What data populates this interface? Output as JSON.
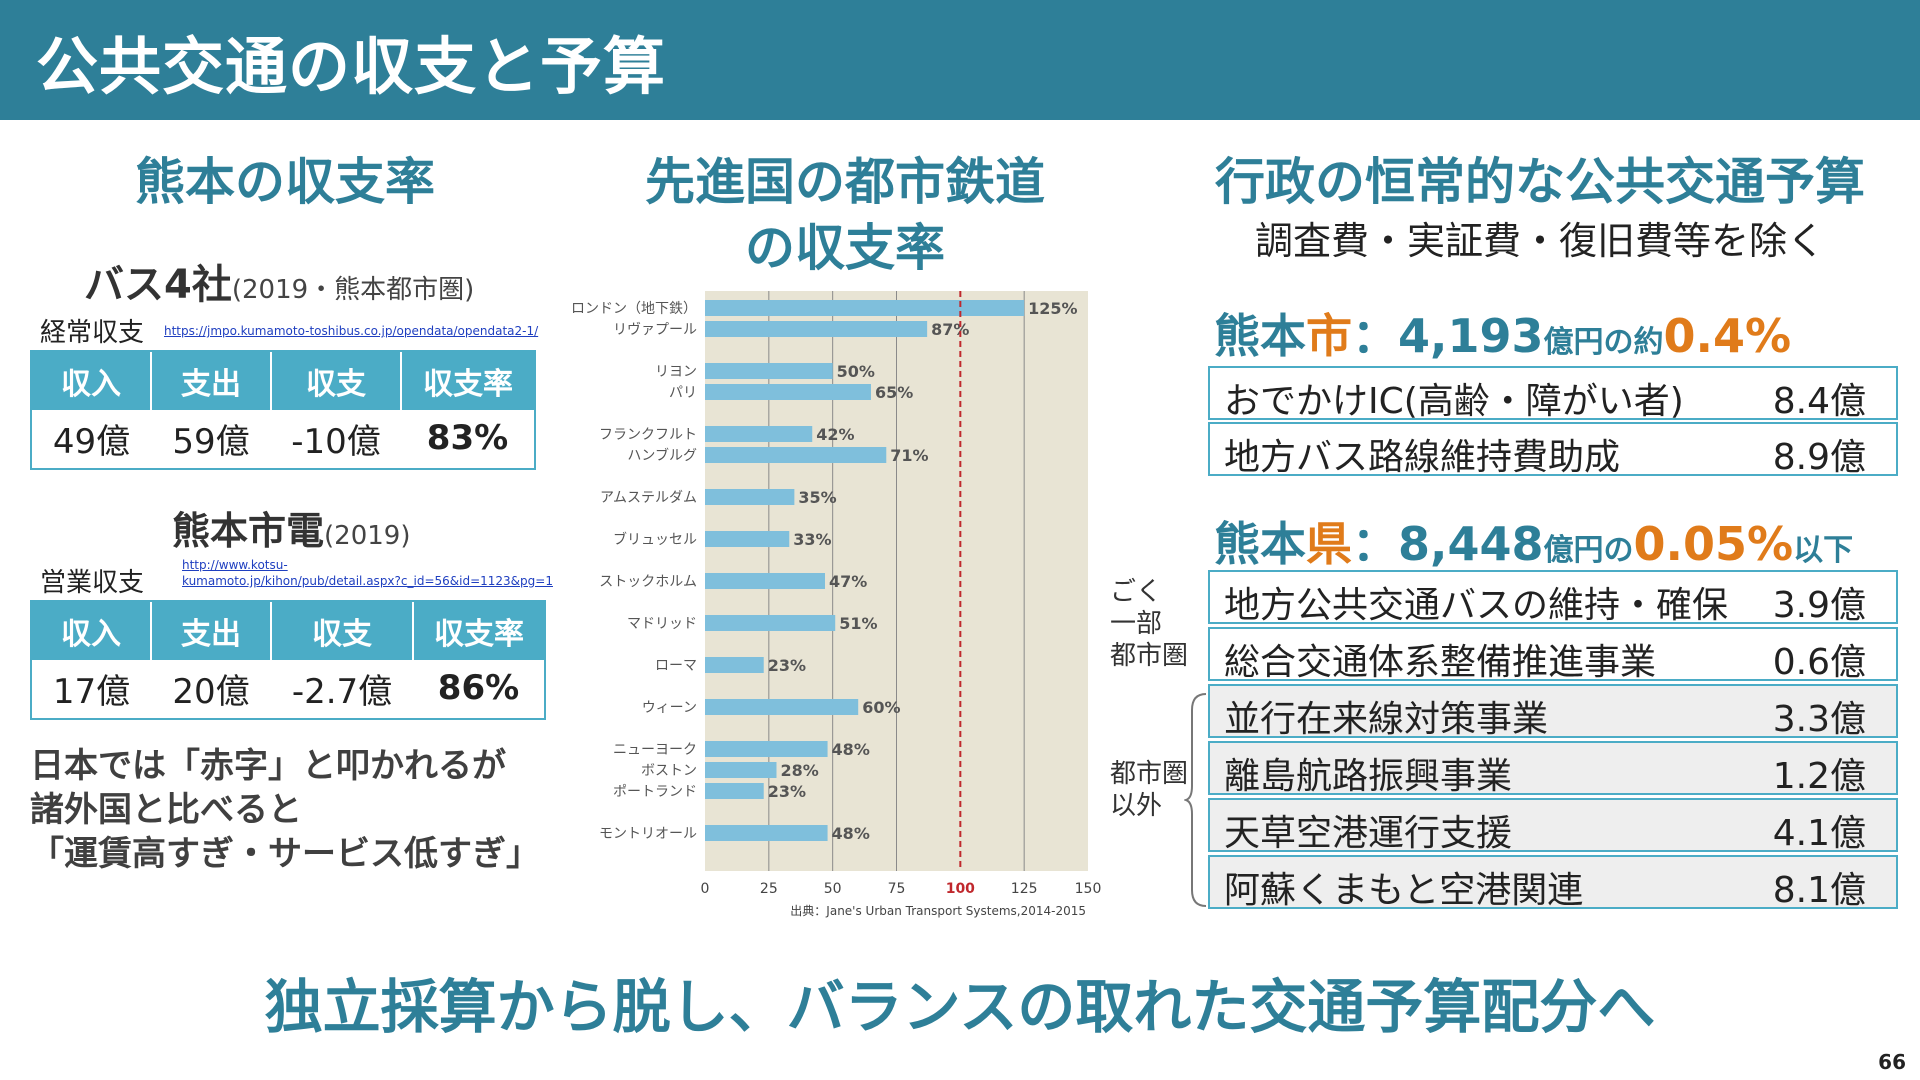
{
  "header": {
    "title": "公共交通の収支と予算"
  },
  "left": {
    "title": "熊本の収支率",
    "bus": {
      "heading": "バス4社",
      "heading_note": "(2019・熊本都市圏)",
      "row_label": "経常収支",
      "link": "https://jmpo.kumamoto-toshibus.co.jp/opendata/opendata2-1/",
      "headers": [
        "収入",
        "支出",
        "収支",
        "収支率"
      ],
      "values": [
        "49億",
        "59億",
        "-10億",
        "83%"
      ]
    },
    "tram": {
      "heading": "熊本市電",
      "heading_note": "(2019)",
      "row_label": "営業収支",
      "link_line1": "http://www.kotsu-",
      "link_line2": "kumamoto.jp/kihon/pub/detail.aspx?c_id=56&id=1123&pg=1",
      "headers": [
        "収入",
        "支出",
        "収支",
        "収支率"
      ],
      "values": [
        "17億",
        "20億",
        "-2.7億",
        "86%"
      ]
    },
    "comment_lines": [
      "日本では「赤字」と叩かれるが",
      "諸外国と比べると",
      "「運賃高すぎ・サービス低すぎ」"
    ]
  },
  "middle": {
    "title_line1": "先進国の都市鉄道",
    "title_line2": "の収支率"
  },
  "chart_data": {
    "type": "bar",
    "orientation": "horizontal",
    "categories": [
      "ロンドン（地下鉄）",
      "リヴァプール",
      "リヨン",
      "パリ",
      "フランクフルト",
      "ハンブルグ",
      "アムステルダム",
      "ブリュッセル",
      "ストックホルム",
      "マドリッド",
      "ローマ",
      "ウィーン",
      "ニューヨーク",
      "ボストン",
      "ポートランド",
      "モントリオール"
    ],
    "values": [
      125,
      87,
      50,
      65,
      42,
      71,
      35,
      33,
      47,
      51,
      23,
      60,
      48,
      28,
      23,
      48
    ],
    "value_labels": [
      "125%",
      "87%",
      "50%",
      "65%",
      "42%",
      "71%",
      "35%",
      "33%",
      "47%",
      "51%",
      "23%",
      "60%",
      "48%",
      "28%",
      "23%",
      "48%"
    ],
    "groups": [
      [
        0,
        1
      ],
      [
        2,
        3
      ],
      [
        4,
        5
      ],
      [
        6
      ],
      [
        7
      ],
      [
        8
      ],
      [
        9
      ],
      [
        10
      ],
      [
        11
      ],
      [
        12,
        13,
        14
      ],
      [
        15
      ]
    ],
    "xlim": [
      0,
      150
    ],
    "xticks": [
      "0",
      "25",
      "50",
      "75",
      "100",
      "125",
      "150"
    ],
    "xtick_values": [
      0,
      25,
      50,
      75,
      100,
      125,
      150
    ],
    "reference_line": 100,
    "reference_color": "#c0282d",
    "bar_color": "#7fbfdc",
    "plot_background": "#e8e4d4",
    "grid": true,
    "source": "出典：Jane's Urban Transport Systems,2014-2015"
  },
  "right": {
    "title": "行政の恒常的な公共交通予算",
    "subtitle": "調査費・実証費・復旧費等を除く",
    "city": {
      "prefix": "熊本",
      "suffix_char": "市",
      "mid": "：4,193",
      "unit": "億円の約",
      "pct": "0.4%",
      "items": [
        {
          "name": "おでかけIC(高齢・障がい者)",
          "amount": "8.4億"
        },
        {
          "name": "地方バス路線維持費助成",
          "amount": "8.9億"
        }
      ]
    },
    "pref": {
      "prefix": "熊本",
      "suffix_char": "県",
      "mid": "：8,448",
      "unit": "億円の",
      "pct": "0.05%",
      "tail": "以下",
      "group1_label": [
        "ごく",
        "一部",
        "都市圏"
      ],
      "group2_label": [
        "都市圏",
        "以外"
      ],
      "items": [
        {
          "name": "地方公共交通バスの維持・確保",
          "amount": "3.9億"
        },
        {
          "name": "総合交通体系整備推進事業",
          "amount": "0.6億"
        },
        {
          "name": "並行在来線対策事業",
          "amount": "3.3億"
        },
        {
          "name": "離島航路振興事業",
          "amount": "1.2億"
        },
        {
          "name": "天草空港運行支援",
          "amount": "4.1億"
        },
        {
          "name": "阿蘇くまもと空港関連",
          "amount": "8.1億"
        }
      ]
    }
  },
  "footer": {
    "conclusion": "独立採算から脱し、バランスの取れた交通予算配分へ",
    "page_number": "66"
  },
  "colors": {
    "teal": "#2e7f98",
    "table_header": "#4bacc6",
    "orange": "#e07b1a"
  }
}
